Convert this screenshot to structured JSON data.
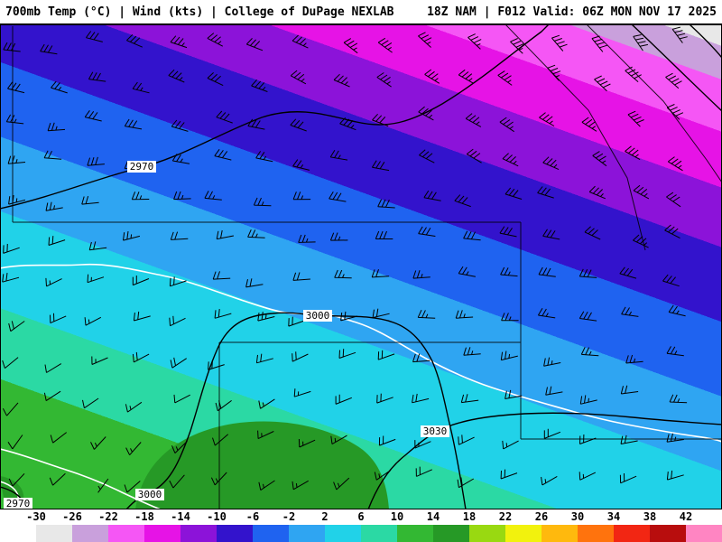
{
  "header": {
    "left": "700mb Temp (°C) | Wind (kts) | College of DuPage NEXLAB",
    "right": "18Z NAM | F012 Valid: 06Z MON NOV 17 2025"
  },
  "map": {
    "contour_labels": [
      "2970",
      "3000",
      "3030",
      "3000",
      "2970"
    ],
    "isotherm_color": "#ffffff",
    "contour_color": "#000000",
    "overlay_fill_index": 12
  },
  "colorbar": {
    "labels": [
      "-30",
      "-26",
      "-22",
      "-18",
      "-14",
      "-10",
      "-6",
      "-2",
      "2",
      "6",
      "10",
      "14",
      "18",
      "22",
      "26",
      "30",
      "34",
      "38",
      "42"
    ],
    "colors": [
      "#ffffff",
      "#e8e8e8",
      "#c9a0dc",
      "#f556f5",
      "#e613e6",
      "#8c13d9",
      "#3313cc",
      "#1f63f0",
      "#2fa5f2",
      "#21d2e8",
      "#2bd9a4",
      "#33b833",
      "#269926",
      "#99d911",
      "#f2f20d",
      "#ffb90d",
      "#ff730d",
      "#f22613",
      "#b80d0d",
      "#ff85c2"
    ]
  }
}
